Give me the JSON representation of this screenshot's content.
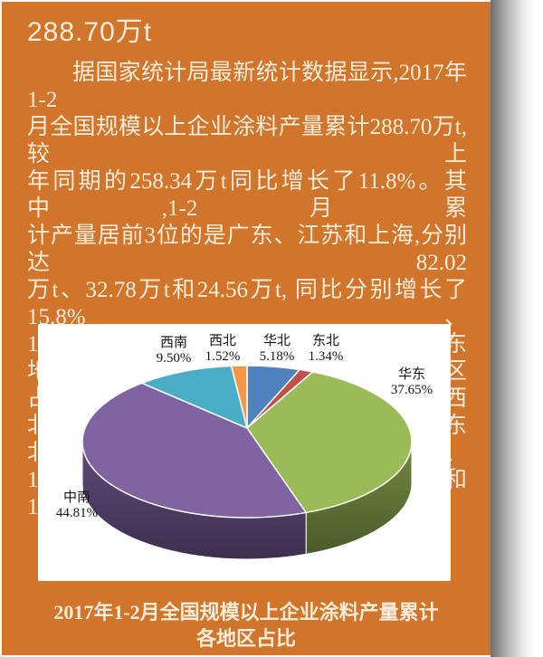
{
  "page": {
    "background_color": "#D1752C",
    "text_color": "#F6ECD9",
    "title": "288.70万t",
    "paragraph_lines": [
      "据国家统计局最新统计数据显示,2017年1-2",
      "月全国规模以上企业涂料产量累计288.70万t,较上",
      "年同期的258.34万t同比增长了11.8%。其中,1-2月累",
      "计产量居前3位的是广东、江苏和上海,分别达82.02",
      "万t、32.78万t和24.56万t, 同比分别增长了15.8%、",
      "10.6%和25.0%。同时,中南地区产量超过华东地区",
      "占比最大,达44.81%; 华东、西南、华北、西北和东",
      "北产量依次占比达37.65%、9.50%、5.18%、1.52%和",
      "1.34%。"
    ],
    "caption": {
      "line1": "2017年1-2月全国规模以上企业涂料产量累计",
      "line2": "各地区占比"
    }
  },
  "chart_data": {
    "type": "pie",
    "style": "3d",
    "title": "2017年1-2月全国规模以上企业涂料产量累计各地区占比",
    "unit": "%",
    "start_angle_deg": 0,
    "direction": "clockwise",
    "background": "#FFFFFF",
    "slices": [
      {
        "name": "华北",
        "value": 5.18,
        "label": "5.18%",
        "color": "#4F81BD"
      },
      {
        "name": "东北",
        "value": 1.34,
        "label": "1.34%",
        "color": "#C0504D"
      },
      {
        "name": "华东",
        "value": 37.65,
        "label": "37.65%",
        "color": "#9BBB59"
      },
      {
        "name": "中南",
        "value": 44.81,
        "label": "44.81%",
        "color": "#8064A2"
      },
      {
        "name": "西南",
        "value": 9.5,
        "label": "9.50%",
        "color": "#4BACC6"
      },
      {
        "name": "西北",
        "value": 1.52,
        "label": "1.52%",
        "color": "#F79646"
      }
    ]
  }
}
